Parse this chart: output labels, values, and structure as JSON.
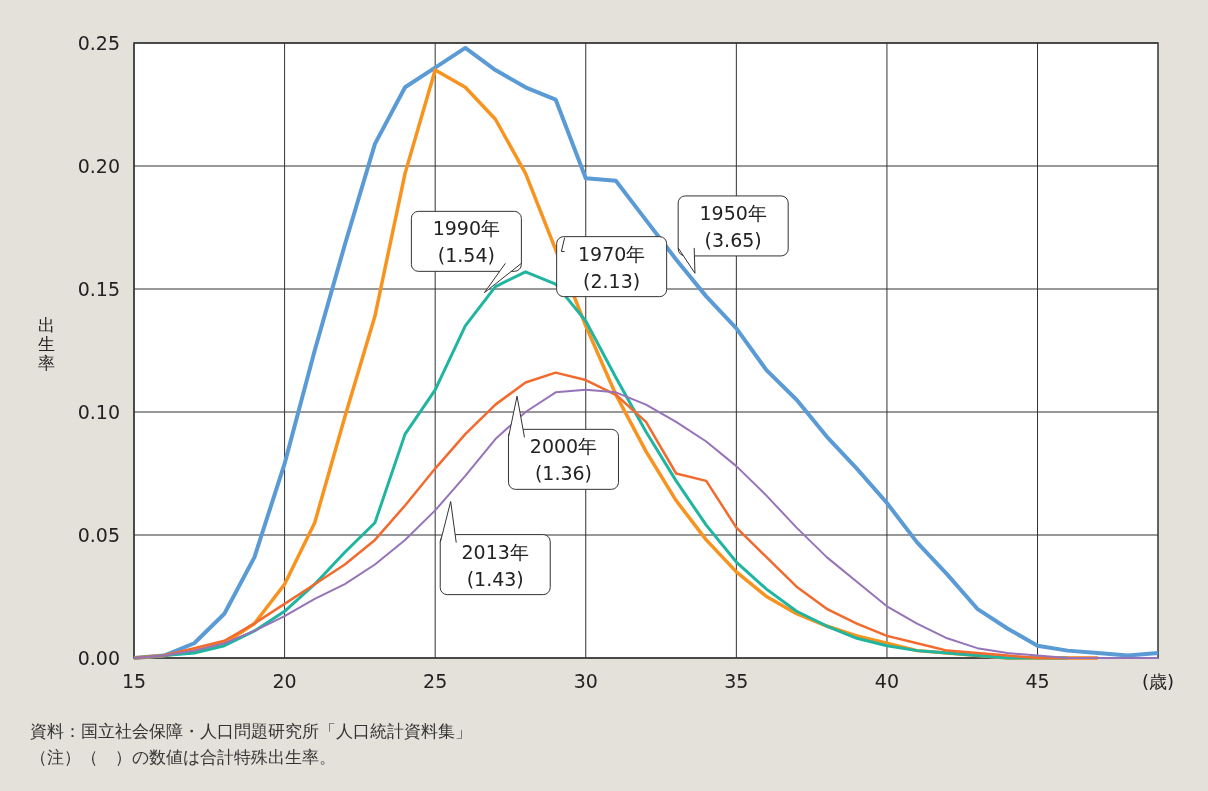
{
  "chart_data": {
    "type": "line",
    "ylabel": "出生率",
    "xlabel": "(歳)",
    "x": [
      15,
      16,
      17,
      18,
      19,
      20,
      21,
      22,
      23,
      24,
      25,
      26,
      27,
      28,
      29,
      30,
      31,
      32,
      33,
      34,
      35,
      36,
      37,
      38,
      39,
      40,
      41,
      42,
      43,
      44,
      45,
      46,
      47,
      48,
      49
    ],
    "xlim": [
      15,
      49
    ],
    "xticks": [
      15,
      20,
      25,
      30,
      35,
      40,
      45
    ],
    "ylim": [
      0,
      0.25
    ],
    "yticks": [
      {
        "value": 0,
        "label": "0.00"
      },
      {
        "value": 0.05,
        "label": "0.05"
      },
      {
        "value": 0.1,
        "label": "0.10"
      },
      {
        "value": 0.15,
        "label": "0.15"
      },
      {
        "value": 0.2,
        "label": "0.20"
      },
      {
        "value": 0.25,
        "label": "0.25"
      }
    ],
    "grid": true,
    "series": [
      {
        "name": "1950年\n(3.65)",
        "color": "#5b9bd5",
        "values": [
          0,
          0.001,
          0.006,
          0.018,
          0.041,
          0.079,
          0.125,
          0.168,
          0.209,
          0.232,
          0.24,
          0.248,
          0.239,
          0.232,
          0.227,
          0.195,
          0.194,
          0.178,
          0.162,
          0.147,
          0.134,
          0.117,
          0.105,
          0.09,
          0.077,
          0.063,
          0.047,
          0.034,
          0.02,
          0.012,
          0.005,
          0.003,
          0.002,
          0.001,
          0.002
        ]
      },
      {
        "name": "1970年\n(2.13)",
        "color": "#f7931e",
        "values": [
          0,
          0.001,
          0.003,
          0.006,
          0.014,
          0.03,
          0.055,
          0.098,
          0.139,
          0.197,
          0.239,
          0.232,
          0.219,
          0.197,
          0.166,
          0.135,
          0.107,
          0.084,
          0.064,
          0.048,
          0.035,
          0.025,
          0.018,
          0.013,
          0.009,
          0.006,
          0.003,
          0.002,
          0.001,
          0,
          0,
          0,
          0,
          null,
          null
        ]
      },
      {
        "name": "1990年\n(1.54)",
        "color": "#1fb5a0",
        "values": [
          0,
          0.001,
          0.002,
          0.005,
          0.011,
          0.019,
          0.03,
          0.043,
          0.055,
          0.091,
          0.109,
          0.135,
          0.151,
          0.157,
          0.152,
          0.137,
          0.114,
          0.092,
          0.072,
          0.054,
          0.039,
          0.028,
          0.019,
          0.013,
          0.008,
          0.005,
          0.003,
          0.002,
          0.001,
          0,
          0,
          0,
          null,
          null,
          null
        ]
      },
      {
        "name": "2000年\n(1.36)",
        "color": "#f26a2e",
        "values": [
          0,
          0.001,
          0.004,
          0.007,
          0.014,
          0.022,
          0.03,
          0.038,
          0.048,
          0.062,
          0.077,
          0.091,
          0.103,
          0.112,
          0.116,
          0.113,
          0.107,
          0.096,
          0.075,
          0.072,
          0.053,
          0.041,
          0.029,
          0.02,
          0.014,
          0.009,
          0.006,
          0.003,
          0.002,
          0.001,
          0,
          0,
          0,
          null,
          null
        ]
      },
      {
        "name": "2013年\n(1.43)",
        "color": "#9673b9",
        "values": [
          0,
          0.001,
          0.003,
          0.006,
          0.011,
          0.017,
          0.024,
          0.03,
          0.038,
          0.048,
          0.06,
          0.074,
          0.089,
          0.1,
          0.108,
          0.109,
          0.108,
          0.103,
          0.096,
          0.088,
          0.078,
          0.066,
          0.053,
          0.041,
          0.031,
          0.021,
          0.014,
          0.008,
          0.004,
          0.002,
          0.001,
          0,
          0,
          0,
          0
        ]
      }
    ],
    "annotations": [
      "資料：国立社会保障・人口問題研究所「人口統計資料集」",
      "（注）（　）の数値は合計特殊出生率。"
    ]
  }
}
